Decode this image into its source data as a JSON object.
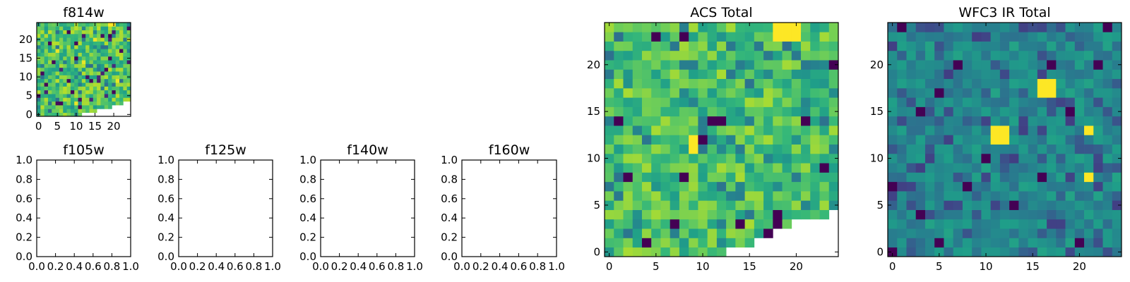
{
  "chart_data": [
    {
      "id": "f814w",
      "type": "heatmap",
      "title": "f814w",
      "colormap": "viridis",
      "grid": false,
      "xlim": [
        -0.5,
        24.5
      ],
      "ylim": [
        -0.5,
        24.5
      ],
      "x_ticks": [
        "0",
        "5",
        "10",
        "15",
        "20"
      ],
      "y_ticks": [
        "0",
        "5",
        "10",
        "15",
        "20"
      ],
      "vmin": 0,
      "vmax": 1,
      "seed": 814,
      "bright_cells": [
        [
          19,
          24
        ],
        [
          20,
          24
        ]
      ],
      "missing_corner": [
        [
          12,
          0
        ],
        [
          13,
          0
        ],
        [
          14,
          0
        ],
        [
          15,
          0
        ],
        [
          16,
          0
        ],
        [
          17,
          0
        ],
        [
          18,
          0
        ],
        [
          19,
          0
        ],
        [
          20,
          0
        ],
        [
          21,
          0
        ],
        [
          22,
          0
        ],
        [
          23,
          0
        ],
        [
          24,
          0
        ],
        [
          16,
          1
        ],
        [
          17,
          1
        ],
        [
          18,
          1
        ],
        [
          19,
          1
        ],
        [
          20,
          1
        ],
        [
          21,
          1
        ],
        [
          22,
          1
        ],
        [
          23,
          1
        ],
        [
          24,
          1
        ],
        [
          20,
          2
        ],
        [
          21,
          2
        ],
        [
          22,
          2
        ],
        [
          23,
          2
        ],
        [
          24,
          2
        ],
        [
          23,
          3
        ],
        [
          24,
          3
        ]
      ]
    },
    {
      "id": "f105w",
      "type": "heatmap",
      "title": "f105w",
      "xlim": [
        0,
        1
      ],
      "ylim": [
        0,
        1
      ],
      "x_ticks": [
        "0.0",
        "0.2",
        "0.4",
        "0.6",
        "0.8",
        "1.0"
      ],
      "y_ticks": [
        "0.0",
        "0.2",
        "0.4",
        "0.6",
        "0.8",
        "1.0"
      ],
      "values": []
    },
    {
      "id": "f125w",
      "type": "heatmap",
      "title": "f125w",
      "xlim": [
        0,
        1
      ],
      "ylim": [
        0,
        1
      ],
      "x_ticks": [
        "0.0",
        "0.2",
        "0.4",
        "0.6",
        "0.8",
        "1.0"
      ],
      "y_ticks": [
        "0.0",
        "0.2",
        "0.4",
        "0.6",
        "0.8",
        "1.0"
      ],
      "values": []
    },
    {
      "id": "f140w",
      "type": "heatmap",
      "title": "f140w",
      "xlim": [
        0,
        1
      ],
      "ylim": [
        0,
        1
      ],
      "x_ticks": [
        "0.0",
        "0.2",
        "0.4",
        "0.6",
        "0.8",
        "1.0"
      ],
      "y_ticks": [
        "0.0",
        "0.2",
        "0.4",
        "0.6",
        "0.8",
        "1.0"
      ],
      "values": []
    },
    {
      "id": "f160w",
      "type": "heatmap",
      "title": "f160w",
      "xlim": [
        0,
        1
      ],
      "ylim": [
        0,
        1
      ],
      "x_ticks": [
        "0.0",
        "0.2",
        "0.4",
        "0.6",
        "0.8",
        "1.0"
      ],
      "y_ticks": [
        "0.0",
        "0.2",
        "0.4",
        "0.6",
        "0.8",
        "1.0"
      ],
      "values": []
    },
    {
      "id": "acs_total",
      "type": "heatmap",
      "title": "ACS Total",
      "colormap": "viridis",
      "grid": false,
      "xlim": [
        -0.5,
        24.5
      ],
      "ylim": [
        -0.5,
        24.5
      ],
      "x_ticks": [
        "0",
        "5",
        "10",
        "15",
        "20"
      ],
      "y_ticks": [
        "0",
        "5",
        "10",
        "15",
        "20"
      ],
      "vmin": 0,
      "vmax": 1,
      "seed": 2024,
      "bright_cells": [
        [
          18,
          24
        ],
        [
          19,
          24
        ],
        [
          20,
          24
        ],
        [
          18,
          23
        ],
        [
          19,
          23
        ],
        [
          20,
          23
        ],
        [
          9,
          12
        ],
        [
          9,
          11
        ]
      ],
      "dark_cells": [
        [
          8,
          23
        ],
        [
          5,
          23
        ],
        [
          1,
          14
        ],
        [
          11,
          14
        ],
        [
          12,
          14
        ],
        [
          21,
          14
        ],
        [
          2,
          8
        ],
        [
          8,
          8
        ],
        [
          14,
          3
        ],
        [
          7,
          3
        ],
        [
          4,
          1
        ],
        [
          17,
          2
        ],
        [
          18,
          3
        ],
        [
          23,
          9
        ],
        [
          24,
          20
        ],
        [
          10,
          12
        ],
        [
          18,
          4
        ]
      ],
      "missing_corner": [
        [
          13,
          0
        ],
        [
          14,
          0
        ],
        [
          15,
          0
        ],
        [
          16,
          0
        ],
        [
          17,
          0
        ],
        [
          18,
          0
        ],
        [
          19,
          0
        ],
        [
          20,
          0
        ],
        [
          21,
          0
        ],
        [
          22,
          0
        ],
        [
          23,
          0
        ],
        [
          24,
          0
        ],
        [
          16,
          1
        ],
        [
          17,
          1
        ],
        [
          18,
          1
        ],
        [
          19,
          1
        ],
        [
          20,
          1
        ],
        [
          21,
          1
        ],
        [
          22,
          1
        ],
        [
          23,
          1
        ],
        [
          24,
          1
        ],
        [
          18,
          2
        ],
        [
          19,
          2
        ],
        [
          20,
          2
        ],
        [
          21,
          2
        ],
        [
          22,
          2
        ],
        [
          23,
          2
        ],
        [
          24,
          2
        ],
        [
          20,
          3
        ],
        [
          21,
          3
        ],
        [
          22,
          3
        ],
        [
          23,
          3
        ],
        [
          24,
          3
        ],
        [
          24,
          4
        ]
      ]
    },
    {
      "id": "wfc3_ir_total",
      "type": "heatmap",
      "title": "WFC3 IR Total",
      "colormap": "viridis",
      "grid": false,
      "xlim": [
        -0.5,
        24.5
      ],
      "ylim": [
        -0.5,
        24.5
      ],
      "x_ticks": [
        "0",
        "5",
        "10",
        "15",
        "20"
      ],
      "y_ticks": [
        "0",
        "5",
        "10",
        "15",
        "20"
      ],
      "vmin": 0,
      "vmax": 1,
      "seed": 3131,
      "bright_cells": [
        [
          16,
          17
        ],
        [
          17,
          17
        ],
        [
          16,
          18
        ],
        [
          17,
          18
        ],
        [
          11,
          12
        ],
        [
          12,
          12
        ],
        [
          11,
          13
        ],
        [
          12,
          13
        ],
        [
          21,
          13
        ],
        [
          21,
          8
        ]
      ],
      "dark_cells": [
        [
          1,
          24
        ],
        [
          23,
          24
        ],
        [
          7,
          20
        ],
        [
          17,
          20
        ],
        [
          22,
          20
        ],
        [
          5,
          17
        ],
        [
          3,
          15
        ],
        [
          19,
          15
        ],
        [
          10,
          10
        ],
        [
          16,
          8
        ],
        [
          8,
          7
        ],
        [
          0,
          7
        ],
        [
          13,
          5
        ],
        [
          5,
          1
        ],
        [
          20,
          1
        ],
        [
          0,
          0
        ],
        [
          3,
          4
        ]
      ],
      "missing_corner": []
    }
  ]
}
